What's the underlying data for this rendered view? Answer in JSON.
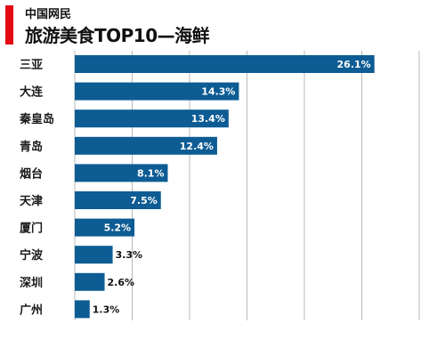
{
  "header": {
    "subtitle": "中国网民",
    "title": "旅游美食TOP10—海鲜"
  },
  "colors": {
    "accent": "#e30613",
    "bar": "#0d5c94",
    "grid": "#b8b8b8",
    "label_inside": "#ffffff",
    "label_outside": "#111111"
  },
  "chart_data": {
    "type": "bar",
    "orientation": "horizontal",
    "title": "旅游美食TOP10—海鲜",
    "subtitle": "中国网民",
    "categories": [
      "三亚",
      "大连",
      "秦皇岛",
      "青岛",
      "烟台",
      "天津",
      "厦门",
      "宁波",
      "深圳",
      "广州"
    ],
    "values": [
      26.1,
      14.3,
      13.4,
      12.4,
      8.1,
      7.5,
      5.2,
      3.3,
      2.6,
      1.3
    ],
    "value_labels": [
      "26.1%",
      "14.3%",
      "13.4%",
      "12.4%",
      "8.1%",
      "7.5%",
      "5.2%",
      "3.3%",
      "2.6%",
      "1.3%"
    ],
    "xlim": [
      0,
      30
    ],
    "grid": true,
    "legend": "none"
  }
}
